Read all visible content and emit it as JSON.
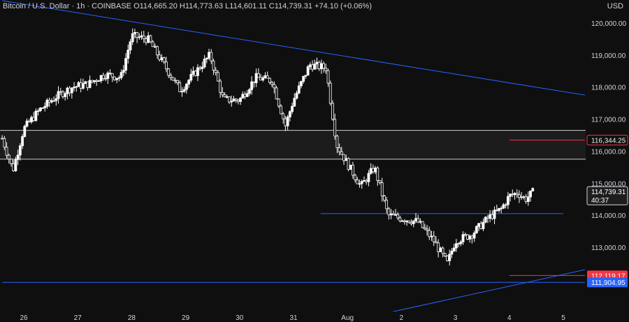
{
  "header": {
    "symbol": "Bitcoin / U.S. Dollar · 1h · COINBASE",
    "open": "O114,665.20",
    "high": "H114,773.63",
    "low": "L114,601.11",
    "close": "C114,739.31",
    "change": "+74.10 (+0.06%)",
    "currency": "USD"
  },
  "colors": {
    "background": "#0f0f0f",
    "candle": "#ffffff",
    "trendline": "#2962ff",
    "level_red": "#f23645",
    "zone_fill": "#1c1c1c",
    "axis_text": "#d1d4dc"
  },
  "chart_data": {
    "type": "candlestick",
    "title": "Bitcoin / U.S. Dollar · 1h · COINBASE",
    "ylim": [
      110700,
      120500
    ],
    "y_ticks": [
      "120,000.00",
      "119,000.00",
      "118,000.00",
      "117,000.00",
      "116,000.00",
      "115,000.00",
      "114,000.00",
      "113,000.00"
    ],
    "y_tick_values": [
      120000,
      119000,
      118000,
      117000,
      116000,
      115000,
      114000,
      113000
    ],
    "x_ticks": [
      "26",
      "27",
      "28",
      "29",
      "30",
      "31",
      "Aug",
      "2",
      "3",
      "4",
      "5"
    ],
    "x_tick_days": [
      26,
      27,
      28,
      29,
      30,
      31,
      32,
      33,
      34,
      35,
      36
    ],
    "xlim_days": [
      25.6,
      36.4
    ],
    "price_labels": [
      {
        "text": "116,344.25",
        "value": 116344.25,
        "style": "red-outline"
      },
      {
        "text": "114,739.31",
        "sub": "40:37",
        "value": 114739.31,
        "style": "current"
      },
      {
        "text": "112,119.17",
        "value": 112119.17,
        "style": "red-fill"
      },
      {
        "text": "111,904.95",
        "value": 111904.95,
        "style": "blue-fill"
      }
    ],
    "zone": {
      "top": 116650,
      "bottom": 115750
    },
    "horizontal_levels": [
      {
        "value": 114050,
        "from_day": 31.5,
        "to_day": 36.0,
        "color": "blue"
      },
      {
        "value": 111904.95,
        "from_day": 25.6,
        "to_day": 36.4,
        "color": "blue"
      },
      {
        "value": 116344.25,
        "from_day": 35.0,
        "to_day": 36.4,
        "color": "red"
      },
      {
        "value": 112119.17,
        "from_day": 35.0,
        "to_day": 36.4,
        "color": "red"
      }
    ],
    "trendlines": [
      {
        "x1_day": 25.6,
        "y1": 120700,
        "x2_day": 36.4,
        "y2": 117750
      },
      {
        "x1_day": 32.6,
        "y1": 110900,
        "x2_day": 36.4,
        "y2": 112300
      }
    ],
    "candles_anchor_days": [
      25.6,
      25.8,
      26.0,
      26.3,
      26.6,
      26.9,
      27.2,
      27.5,
      27.8,
      28.0,
      28.3,
      28.6,
      28.9,
      29.2,
      29.45,
      29.7,
      30.0,
      30.3,
      30.6,
      30.85,
      31.0,
      31.3,
      31.6,
      31.8,
      32.0,
      32.25,
      32.5,
      32.75,
      33.0,
      33.3,
      33.6,
      33.85,
      34.0,
      34.3,
      34.6,
      34.85,
      35.0,
      35.15,
      35.3,
      35.45
    ],
    "candles_anchor_prices": [
      116400,
      115400,
      116700,
      117300,
      117700,
      118000,
      118100,
      118400,
      118300,
      119600,
      119500,
      118700,
      117900,
      118500,
      119000,
      117600,
      117600,
      118300,
      118200,
      116800,
      117600,
      118700,
      118600,
      116200,
      115600,
      114900,
      115500,
      114000,
      113900,
      113800,
      113200,
      112500,
      113200,
      113400,
      113900,
      114200,
      114600,
      114700,
      114500,
      114740
    ]
  }
}
